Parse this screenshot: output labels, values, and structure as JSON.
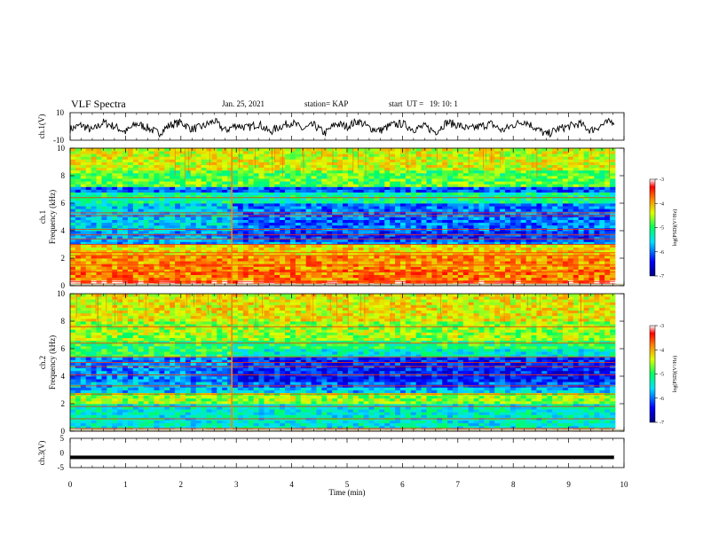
{
  "header": {
    "title": "VLF Spectra",
    "date": "Jan. 25, 2021",
    "station": "station= KAP",
    "start": "start  UT =   19: 10: 1"
  },
  "chart_data": [
    {
      "type": "line",
      "panel": "ch1-waveform",
      "ylabel": "ch.1(V)",
      "ylim": [
        -10,
        10
      ],
      "yticks": [
        "10",
        "-10"
      ],
      "xlim": [
        0,
        10
      ],
      "series": [
        {
          "name": "",
          "x": [
            0.0,
            0.2,
            0.4,
            0.6,
            0.8,
            1.0,
            1.2,
            1.4,
            1.6,
            1.8,
            2.0,
            2.2,
            2.4,
            2.6,
            2.8,
            3.0,
            3.2,
            3.4,
            3.6,
            3.8,
            4.0,
            4.2,
            4.4,
            4.6,
            4.8,
            5.0,
            5.2,
            5.4,
            5.6,
            5.8,
            6.0,
            6.2,
            6.4,
            6.6,
            6.8,
            7.0,
            7.2,
            7.4,
            7.6,
            7.8,
            8.0,
            8.2,
            8.4,
            8.6,
            8.8,
            9.0,
            9.2,
            9.4,
            9.6,
            9.8
          ],
          "values": [
            -2,
            1,
            -3,
            3,
            0,
            -4,
            2,
            -1,
            -5,
            1,
            3,
            -2,
            0,
            4,
            -3,
            1,
            -1,
            2,
            -4,
            0,
            3,
            -2,
            1,
            -5,
            2,
            0,
            4,
            -1,
            -3,
            1,
            2,
            -2,
            0,
            -4,
            3,
            1,
            -2,
            0,
            2,
            -3,
            1,
            4,
            -1,
            -6,
            -2,
            0,
            2,
            -3,
            1,
            4
          ]
        }
      ]
    },
    {
      "type": "heatmap",
      "panel": "ch1-spectrogram",
      "ylabel": "Frequency (kHz)",
      "channel_label": "ch.1",
      "xlim": [
        0,
        10
      ],
      "ylim": [
        0,
        10
      ],
      "yticks": [
        "0",
        "2",
        "4",
        "6",
        "8",
        "10"
      ],
      "colorbar": {
        "label": "log(PSD)(V²/Hz)",
        "range": [
          -7,
          -3
        ],
        "ticks": [
          "-3",
          "-4",
          "-5",
          "-6",
          "-7"
        ]
      },
      "bands": [
        {
          "f_lo": 0.0,
          "f_hi": 0.4,
          "level": -3.4
        },
        {
          "f_lo": 0.4,
          "f_hi": 1.2,
          "level": -3.8
        },
        {
          "f_lo": 1.2,
          "f_hi": 2.3,
          "level": -3.9
        },
        {
          "f_lo": 2.3,
          "f_hi": 3.0,
          "level": -4.2
        },
        {
          "f_lo": 3.0,
          "f_hi": 4.0,
          "level": -5.8
        },
        {
          "f_lo": 4.0,
          "f_hi": 6.0,
          "level": -5.6
        },
        {
          "f_lo": 6.0,
          "f_hi": 6.7,
          "level": -5.2
        },
        {
          "f_lo": 6.7,
          "f_hi": 7.3,
          "level": -6.1
        },
        {
          "f_lo": 7.3,
          "f_hi": 8.5,
          "level": -4.8
        },
        {
          "f_lo": 8.5,
          "f_hi": 10.0,
          "level": -4.4
        }
      ],
      "lines_khz": [
        0.3,
        1.0,
        1.5,
        2.2,
        2.4,
        3.0,
        3.4,
        3.7,
        4.1,
        5.1,
        5.3,
        6.4
      ],
      "event_time_min": 2.92
    },
    {
      "type": "heatmap",
      "panel": "ch2-spectrogram",
      "ylabel": "Frequency (kHz)",
      "channel_label": "ch.2",
      "xlim": [
        0,
        10
      ],
      "ylim": [
        0,
        10
      ],
      "yticks": [
        "0",
        "2",
        "4",
        "6",
        "8",
        "10"
      ],
      "colorbar": {
        "label": "log(PSD)(V²/Hz)",
        "range": [
          -7,
          -3
        ],
        "ticks": [
          "-3",
          "-4",
          "-5",
          "-6",
          "-7"
        ]
      },
      "bands": [
        {
          "f_lo": 0.0,
          "f_hi": 0.3,
          "level": -3.3
        },
        {
          "f_lo": 0.3,
          "f_hi": 2.0,
          "level": -5.4
        },
        {
          "f_lo": 2.0,
          "f_hi": 2.8,
          "level": -4.6
        },
        {
          "f_lo": 2.8,
          "f_hi": 3.6,
          "level": -5.7
        },
        {
          "f_lo": 3.6,
          "f_hi": 5.5,
          "level": -5.9
        },
        {
          "f_lo": 5.5,
          "f_hi": 6.6,
          "level": -5.0
        },
        {
          "f_lo": 6.6,
          "f_hi": 8.0,
          "level": -4.6
        },
        {
          "f_lo": 8.0,
          "f_hi": 10.0,
          "level": -4.3
        }
      ],
      "lines_khz": [
        0.2,
        0.9,
        1.8,
        2.7,
        3.3,
        4.1,
        4.7,
        5.0,
        5.4,
        6.4,
        7.6
      ],
      "event_time_min": 2.92
    },
    {
      "type": "line",
      "panel": "ch3-waveform",
      "ylabel": "ch.3(V)",
      "ylim": [
        -5,
        5
      ],
      "yticks": [
        "5",
        "0",
        "-5"
      ],
      "xlim": [
        0,
        10
      ],
      "xlabel": "Time (min)",
      "xticks": [
        "0",
        "1",
        "2",
        "3",
        "4",
        "5",
        "6",
        "7",
        "8",
        "9",
        "10"
      ],
      "series": [
        {
          "name": "",
          "x": [
            0,
            9.82
          ],
          "values": [
            -1.5,
            -1.5
          ],
          "band_half_width": 0.6
        }
      ]
    }
  ]
}
